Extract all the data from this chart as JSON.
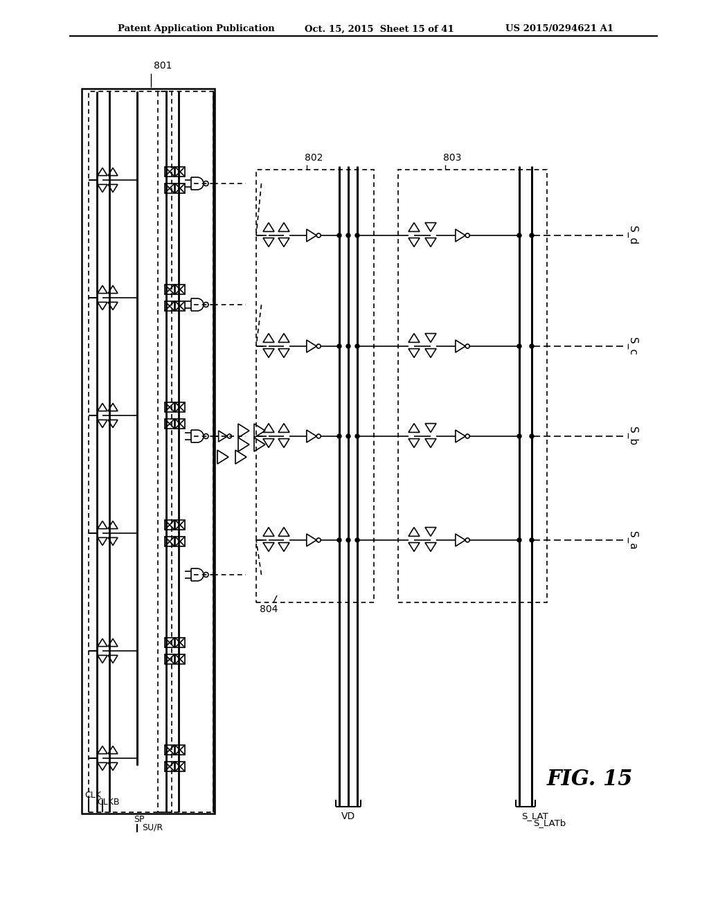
{
  "title": "FIG. 15",
  "header_left": "Patent Application Publication",
  "header_center": "Oct. 15, 2015  Sheet 15 of 41",
  "header_right": "US 2015/0294621 A1",
  "background_color": "#ffffff",
  "line_color": "#000000",
  "label_801": "801",
  "label_802": "802",
  "label_803": "803",
  "label_804": "804",
  "labels_output": [
    "S_d",
    "S_c",
    "S_b",
    "S_a"
  ],
  "labels_input_left": [
    "CLK",
    "CLKB"
  ],
  "labels_input_bottom": [
    "SP",
    "SU/R"
  ],
  "labels_bottom_vd": "VD",
  "labels_bottom_lat": "S_LAT",
  "labels_bottom_latb": "S_LATb",
  "fig_label": "FIG. 15"
}
